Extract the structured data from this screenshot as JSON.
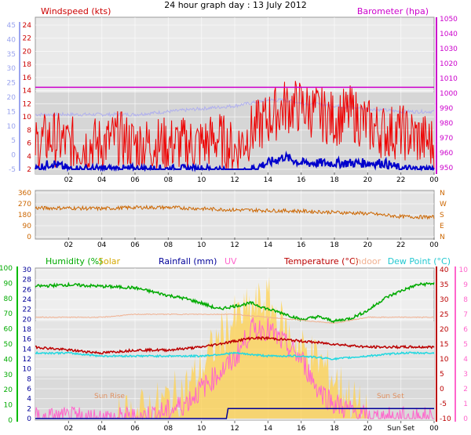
{
  "title": "24 hour graph day : 13 July 2012",
  "colors": {
    "wind": "#ee0000",
    "gust": "#0000cc",
    "temp_axis_wind": "#9aa4ee",
    "baro": "#cc00cc",
    "baro_light": "#b0b0ee",
    "winddir": "#cc6600",
    "humidity": "#00aa00",
    "solar": "#ffd24d",
    "rain": "#000099",
    "uv": "#ff66cc",
    "temperature": "#bb0000",
    "indoor": "#f0b090",
    "dewpoint": "#22d8e0",
    "axis_left_green": "#00bb00",
    "axis_right_pink": "#ff66cc"
  },
  "panels": {
    "wind": {
      "left_label": "Windspeed (kts)",
      "right_label": "Barometer (hpa)",
      "left_ticks": [
        "24",
        "22",
        "20",
        "18",
        "16",
        "14",
        "12",
        "10",
        "8",
        "6",
        "4",
        "2"
      ],
      "outer_left_ticks": [
        "45",
        "40",
        "35",
        "30",
        "25",
        "20",
        "15",
        "10",
        "5",
        "0",
        "-5"
      ],
      "right_ticks": [
        "1050",
        "1040",
        "1030",
        "1020",
        "1010",
        "1000",
        "990",
        "980",
        "970",
        "960",
        "950"
      ]
    },
    "direction": {
      "left_ticks": [
        "360",
        "270",
        "180",
        "90",
        "0"
      ],
      "right_letters": [
        "N",
        "W",
        "S",
        "E",
        "N"
      ]
    },
    "weather": {
      "labels": {
        "humidity": "Humidity (%)",
        "solar": "Solar",
        "rainfall": "Rainfall (mm)",
        "uv": "UV",
        "temperature": "Temperature (°C)",
        "indoor": "Indoor",
        "dewpoint": "Dew Point (°C)",
        "sunrise": "Sun Rise",
        "sunset": "Sun Set",
        "sunset_axis": "Sun Set"
      },
      "outer_left_ticks": [
        "100",
        "90",
        "80",
        "70",
        "60",
        "50",
        "40",
        "30",
        "20",
        "10",
        "0"
      ],
      "left_ticks": [
        "30",
        "28",
        "26",
        "24",
        "22",
        "20",
        "18",
        "16",
        "14",
        "12",
        "10",
        "8",
        "6",
        "4",
        "2",
        "0"
      ],
      "right_temp_ticks": [
        "40",
        "35",
        "30",
        "25",
        "20",
        "15",
        "10",
        "5",
        "0",
        "-5",
        "-10"
      ],
      "outer_right_ticks": [
        "10",
        "9",
        "8",
        "7",
        "6",
        "5",
        "4",
        "3",
        "2",
        "1",
        "0"
      ]
    }
  },
  "x_ticks": [
    "02",
    "04",
    "06",
    "08",
    "10",
    "12",
    "14",
    "16",
    "18",
    "20",
    "22",
    "00"
  ],
  "x_ticks_bottom": [
    "02",
    "04",
    "06",
    "08",
    "10",
    "12",
    "14",
    "16",
    "18",
    "20",
    "Sun Set",
    "00"
  ],
  "chart_data": [
    {
      "type": "line",
      "title": "24 hour graph day : 13 July 2012",
      "x_unit": "hour",
      "xlim": [
        0,
        24
      ],
      "series": [
        {
          "name": "Windspeed (kts)",
          "axis": "left",
          "ylim": [
            2,
            25
          ],
          "x": [
            0,
            1,
            2,
            3,
            4,
            5,
            6,
            7,
            8,
            9,
            10,
            11,
            12,
            13,
            14,
            15,
            16,
            17,
            18,
            19,
            20,
            21,
            22,
            23,
            24
          ],
          "values": [
            6,
            7,
            6,
            6,
            6,
            7,
            6,
            6,
            6,
            6,
            6,
            7,
            5,
            8,
            10,
            12,
            12,
            11,
            10,
            11,
            9,
            8,
            8,
            7,
            6
          ]
        },
        {
          "name": "Gust (kts)",
          "axis": "left",
          "ylim": [
            2,
            25
          ],
          "x": [
            0,
            1,
            2,
            3,
            4,
            5,
            6,
            7,
            8,
            9,
            10,
            11,
            12,
            13,
            14,
            15,
            16,
            17,
            18,
            19,
            20,
            21,
            22,
            23,
            24
          ],
          "values": [
            2,
            3,
            2,
            2,
            2,
            2,
            2,
            2,
            2,
            2,
            2,
            2,
            1,
            2,
            3,
            4,
            3,
            3,
            3,
            3,
            3,
            3,
            2,
            2,
            2
          ]
        },
        {
          "name": "Barometer (hpa)",
          "axis": "right",
          "ylim": [
            950,
            1050
          ],
          "x": [
            0,
            24
          ],
          "values": [
            1004,
            1004
          ]
        },
        {
          "name": "Temperature (outer axis)",
          "axis": "outer_left",
          "ylim": [
            -5,
            45
          ],
          "x": [
            0,
            2,
            4,
            6,
            8,
            10,
            12,
            13,
            14,
            15,
            16,
            18,
            20,
            22,
            24
          ],
          "values": [
            14,
            14,
            14,
            14,
            15,
            16,
            17,
            18,
            19,
            19,
            18,
            17,
            16,
            15,
            15
          ]
        }
      ]
    },
    {
      "type": "line",
      "title": "",
      "x_unit": "hour",
      "xlim": [
        0,
        24
      ],
      "series": [
        {
          "name": "Wind Direction",
          "ylim": [
            0,
            360
          ],
          "x": [
            0,
            2,
            4,
            6,
            8,
            10,
            12,
            14,
            16,
            18,
            20,
            22,
            24
          ],
          "values": [
            235,
            235,
            230,
            240,
            240,
            230,
            220,
            215,
            210,
            200,
            190,
            165,
            160
          ]
        }
      ]
    },
    {
      "type": "line",
      "title": "",
      "x_unit": "hour",
      "xlim": [
        0,
        24
      ],
      "series": [
        {
          "name": "Humidity (%)",
          "axis": "outer_left",
          "ylim": [
            0,
            100
          ],
          "x": [
            0,
            2,
            4,
            6,
            8,
            9,
            10,
            11,
            12,
            13,
            14,
            15,
            16,
            17,
            18,
            19,
            20,
            21,
            22,
            23,
            24
          ],
          "values": [
            88,
            89,
            88,
            87,
            82,
            80,
            77,
            73,
            75,
            77,
            73,
            70,
            66,
            68,
            65,
            67,
            72,
            80,
            85,
            89,
            90
          ]
        },
        {
          "name": "Solar",
          "axis": "left",
          "ylim": [
            0,
            30
          ],
          "x": [
            0,
            5,
            6,
            7,
            8,
            9,
            10,
            11,
            12,
            13,
            14,
            15,
            16,
            17,
            18,
            19,
            20,
            24
          ],
          "values": [
            0,
            0,
            1,
            2,
            4,
            6,
            10,
            16,
            20,
            22,
            24,
            18,
            14,
            12,
            8,
            4,
            0,
            0
          ]
        },
        {
          "name": "Rainfall (mm)",
          "axis": "left",
          "ylim": [
            0,
            30
          ],
          "x": [
            0,
            11.5,
            11.6,
            24
          ],
          "values": [
            0,
            0,
            2,
            2
          ]
        },
        {
          "name": "UV",
          "axis": "outer_right",
          "ylim": [
            0,
            10
          ],
          "x": [
            0,
            6,
            8,
            9,
            10,
            11,
            12,
            13,
            14,
            15,
            16,
            17,
            18,
            19,
            20,
            24
          ],
          "values": [
            0,
            0,
            0.5,
            1,
            2,
            3,
            4,
            6,
            6,
            5,
            4,
            2,
            1,
            0.5,
            0,
            0
          ]
        },
        {
          "name": "Temperature (°C)",
          "axis": "right",
          "ylim": [
            -10,
            40
          ],
          "x": [
            0,
            2,
            4,
            6,
            8,
            10,
            11,
            12,
            13,
            14,
            16,
            18,
            20,
            22,
            24
          ],
          "values": [
            14,
            13,
            12,
            13,
            13,
            14,
            15,
            16,
            17,
            17,
            16,
            15,
            14,
            14,
            14
          ]
        },
        {
          "name": "Indoor",
          "axis": "right",
          "ylim": [
            -10,
            40
          ],
          "x": [
            0,
            2,
            4,
            6,
            8,
            10,
            12,
            14,
            16,
            18,
            20,
            22,
            24
          ],
          "values": [
            24,
            24,
            24,
            25,
            25,
            25,
            25,
            24,
            23,
            22,
            24,
            24,
            24
          ]
        },
        {
          "name": "Dew Point (°C)",
          "axis": "right",
          "ylim": [
            -10,
            40
          ],
          "x": [
            0,
            2,
            4,
            6,
            8,
            10,
            12,
            14,
            16,
            18,
            20,
            22,
            24
          ],
          "values": [
            12,
            12,
            11,
            11,
            11,
            11,
            12,
            11,
            11,
            10,
            11,
            12,
            12
          ]
        }
      ]
    }
  ]
}
